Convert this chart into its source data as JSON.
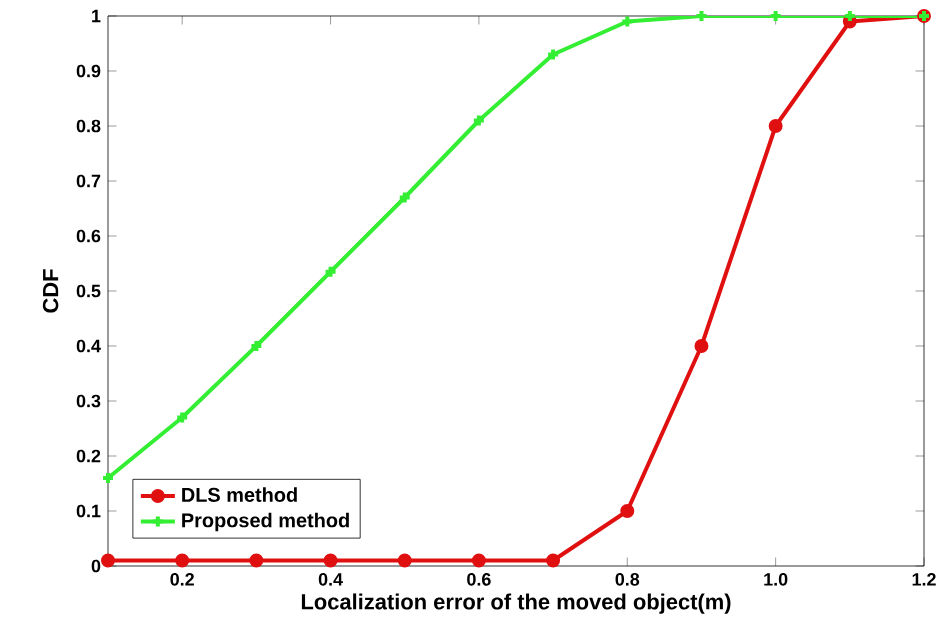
{
  "chart_data": {
    "type": "line",
    "xlabel": "Localization error of the moved object(m)",
    "ylabel": "CDF",
    "x": [
      0.1,
      0.2,
      0.3,
      0.4,
      0.5,
      0.6,
      0.7,
      0.8,
      0.9,
      1.0,
      1.1,
      1.2
    ],
    "series": [
      {
        "name": "DLS method",
        "color": "#e01010",
        "marker": "circle",
        "values": [
          0.01,
          0.01,
          0.01,
          0.01,
          0.01,
          0.01,
          0.01,
          0.1,
          0.4,
          0.8,
          0.99,
          1.0
        ]
      },
      {
        "name": "Proposed method",
        "color": "#33ee33",
        "marker": "cross",
        "values": [
          0.16,
          0.27,
          0.4,
          0.535,
          0.67,
          0.81,
          0.93,
          0.99,
          1.0,
          1.0,
          1.0,
          1.0
        ]
      }
    ],
    "xlim": [
      0.1,
      1.2
    ],
    "ylim": [
      0,
      1
    ],
    "xticks": [
      0.2,
      0.4,
      0.6,
      0.8,
      {
        "value": 1.0,
        "label": "1.0"
      },
      1.2
    ],
    "yticks": [
      0,
      0.1,
      0.2,
      0.3,
      0.4,
      0.5,
      0.6,
      0.7,
      0.8,
      0.9,
      1
    ],
    "legend": "bottom left",
    "grid": false,
    "line_style": "solid"
  }
}
